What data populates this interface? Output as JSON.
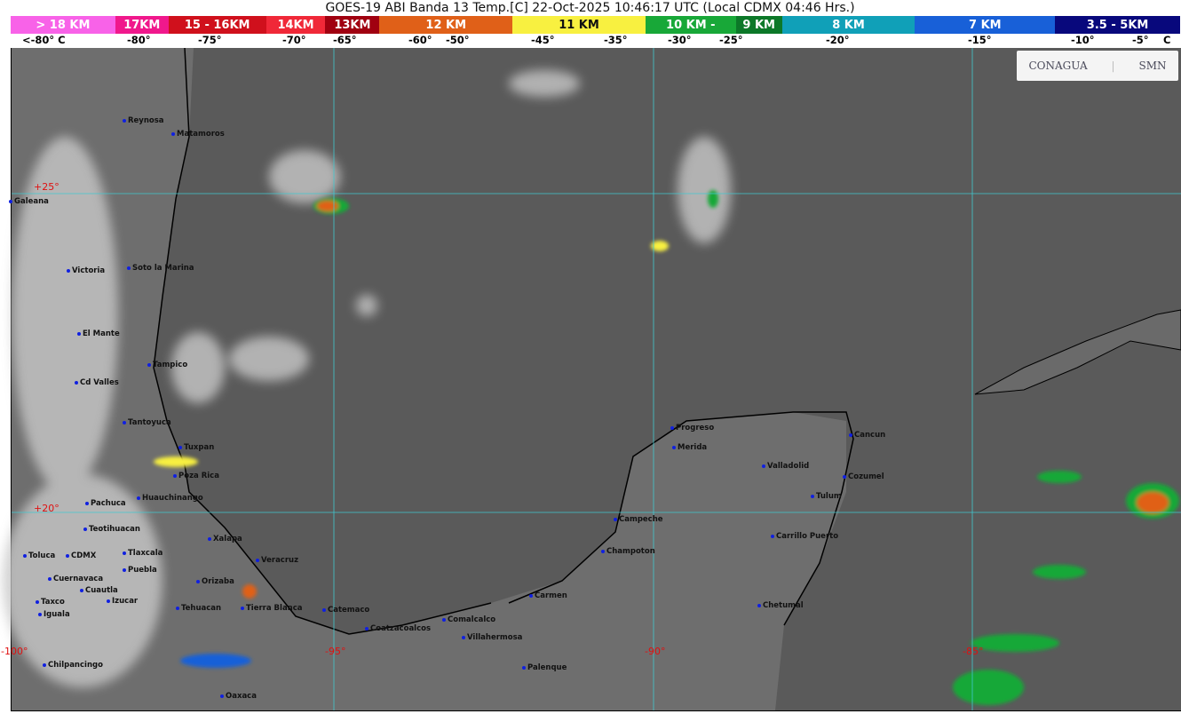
{
  "title": "GOES-19 ABI Banda 13 Temp.[C] 22-Oct-2025 10:46:17 UTC (Local CDMX  04:46 Hrs.)",
  "legend": [
    {
      "label": "> 18 KM",
      "color": "#f862e8"
    },
    {
      "label": "17KM",
      "color": "#f0188c"
    },
    {
      "label": "15 - 16KM",
      "color": "#d0101c"
    },
    {
      "label": "14KM",
      "color": "#f02838"
    },
    {
      "label": "13KM",
      "color": "#a00010"
    },
    {
      "label": "12 KM",
      "color": "#e06018"
    },
    {
      "label": "11 KM",
      "color": "#f8f040"
    },
    {
      "label": "10 KM -",
      "color": "#18a838"
    },
    {
      "label": "9 KM",
      "color": "#0c7828"
    },
    {
      "label": "8 KM",
      "color": "#10a0b8"
    },
    {
      "label": "7 KM",
      "color": "#1860d8"
    },
    {
      "label": "3.5 - 5KM",
      "color": "#08087c"
    }
  ],
  "temperatures": [
    "<-80° C",
    "-80°",
    "-75°",
    "-70°",
    "-65°",
    "-60°",
    "-50°",
    "-45°",
    "-35°",
    "-30°",
    "-25°",
    "-20°",
    "-15°",
    "-10°",
    "-5°",
    "C"
  ],
  "logos": {
    "conagua": "CONAGUA",
    "smn": "SMN"
  },
  "coordinates": [
    "+25°",
    "+20°",
    "-100°",
    "-95°",
    "-90°",
    "-85°"
  ],
  "cities": [
    "Reynosa",
    "Matamoros",
    "Galeana",
    "Victoria",
    "Soto la Marina",
    "El Mante",
    "Tampico",
    "Cd Valles",
    "Tantoyuca",
    "Tuxpan",
    "Poza Rica",
    "Huauchinango",
    "Pachuca",
    "Teotihuacan",
    "Xalapa",
    "Veracruz",
    "Toluca",
    "CDMX",
    "Tlaxcala",
    "Puebla",
    "Cuernavaca",
    "Cuautla",
    "Orizaba",
    "Izucar",
    "Taxco",
    "Iguala",
    "Tehuacan",
    "Tierra Blanca",
    "Catemaco",
    "Coatzacoalcos",
    "Comalcalco",
    "Villahermosa",
    "Chilpancingo",
    "Oaxaca",
    "Palenque",
    "Carmen",
    "Champoton",
    "Campeche",
    "Progreso",
    "Merida",
    "Valladolid",
    "Cancun",
    "Cozumel",
    "Tulum",
    "Carrillo Puerto",
    "Chetumal"
  ]
}
